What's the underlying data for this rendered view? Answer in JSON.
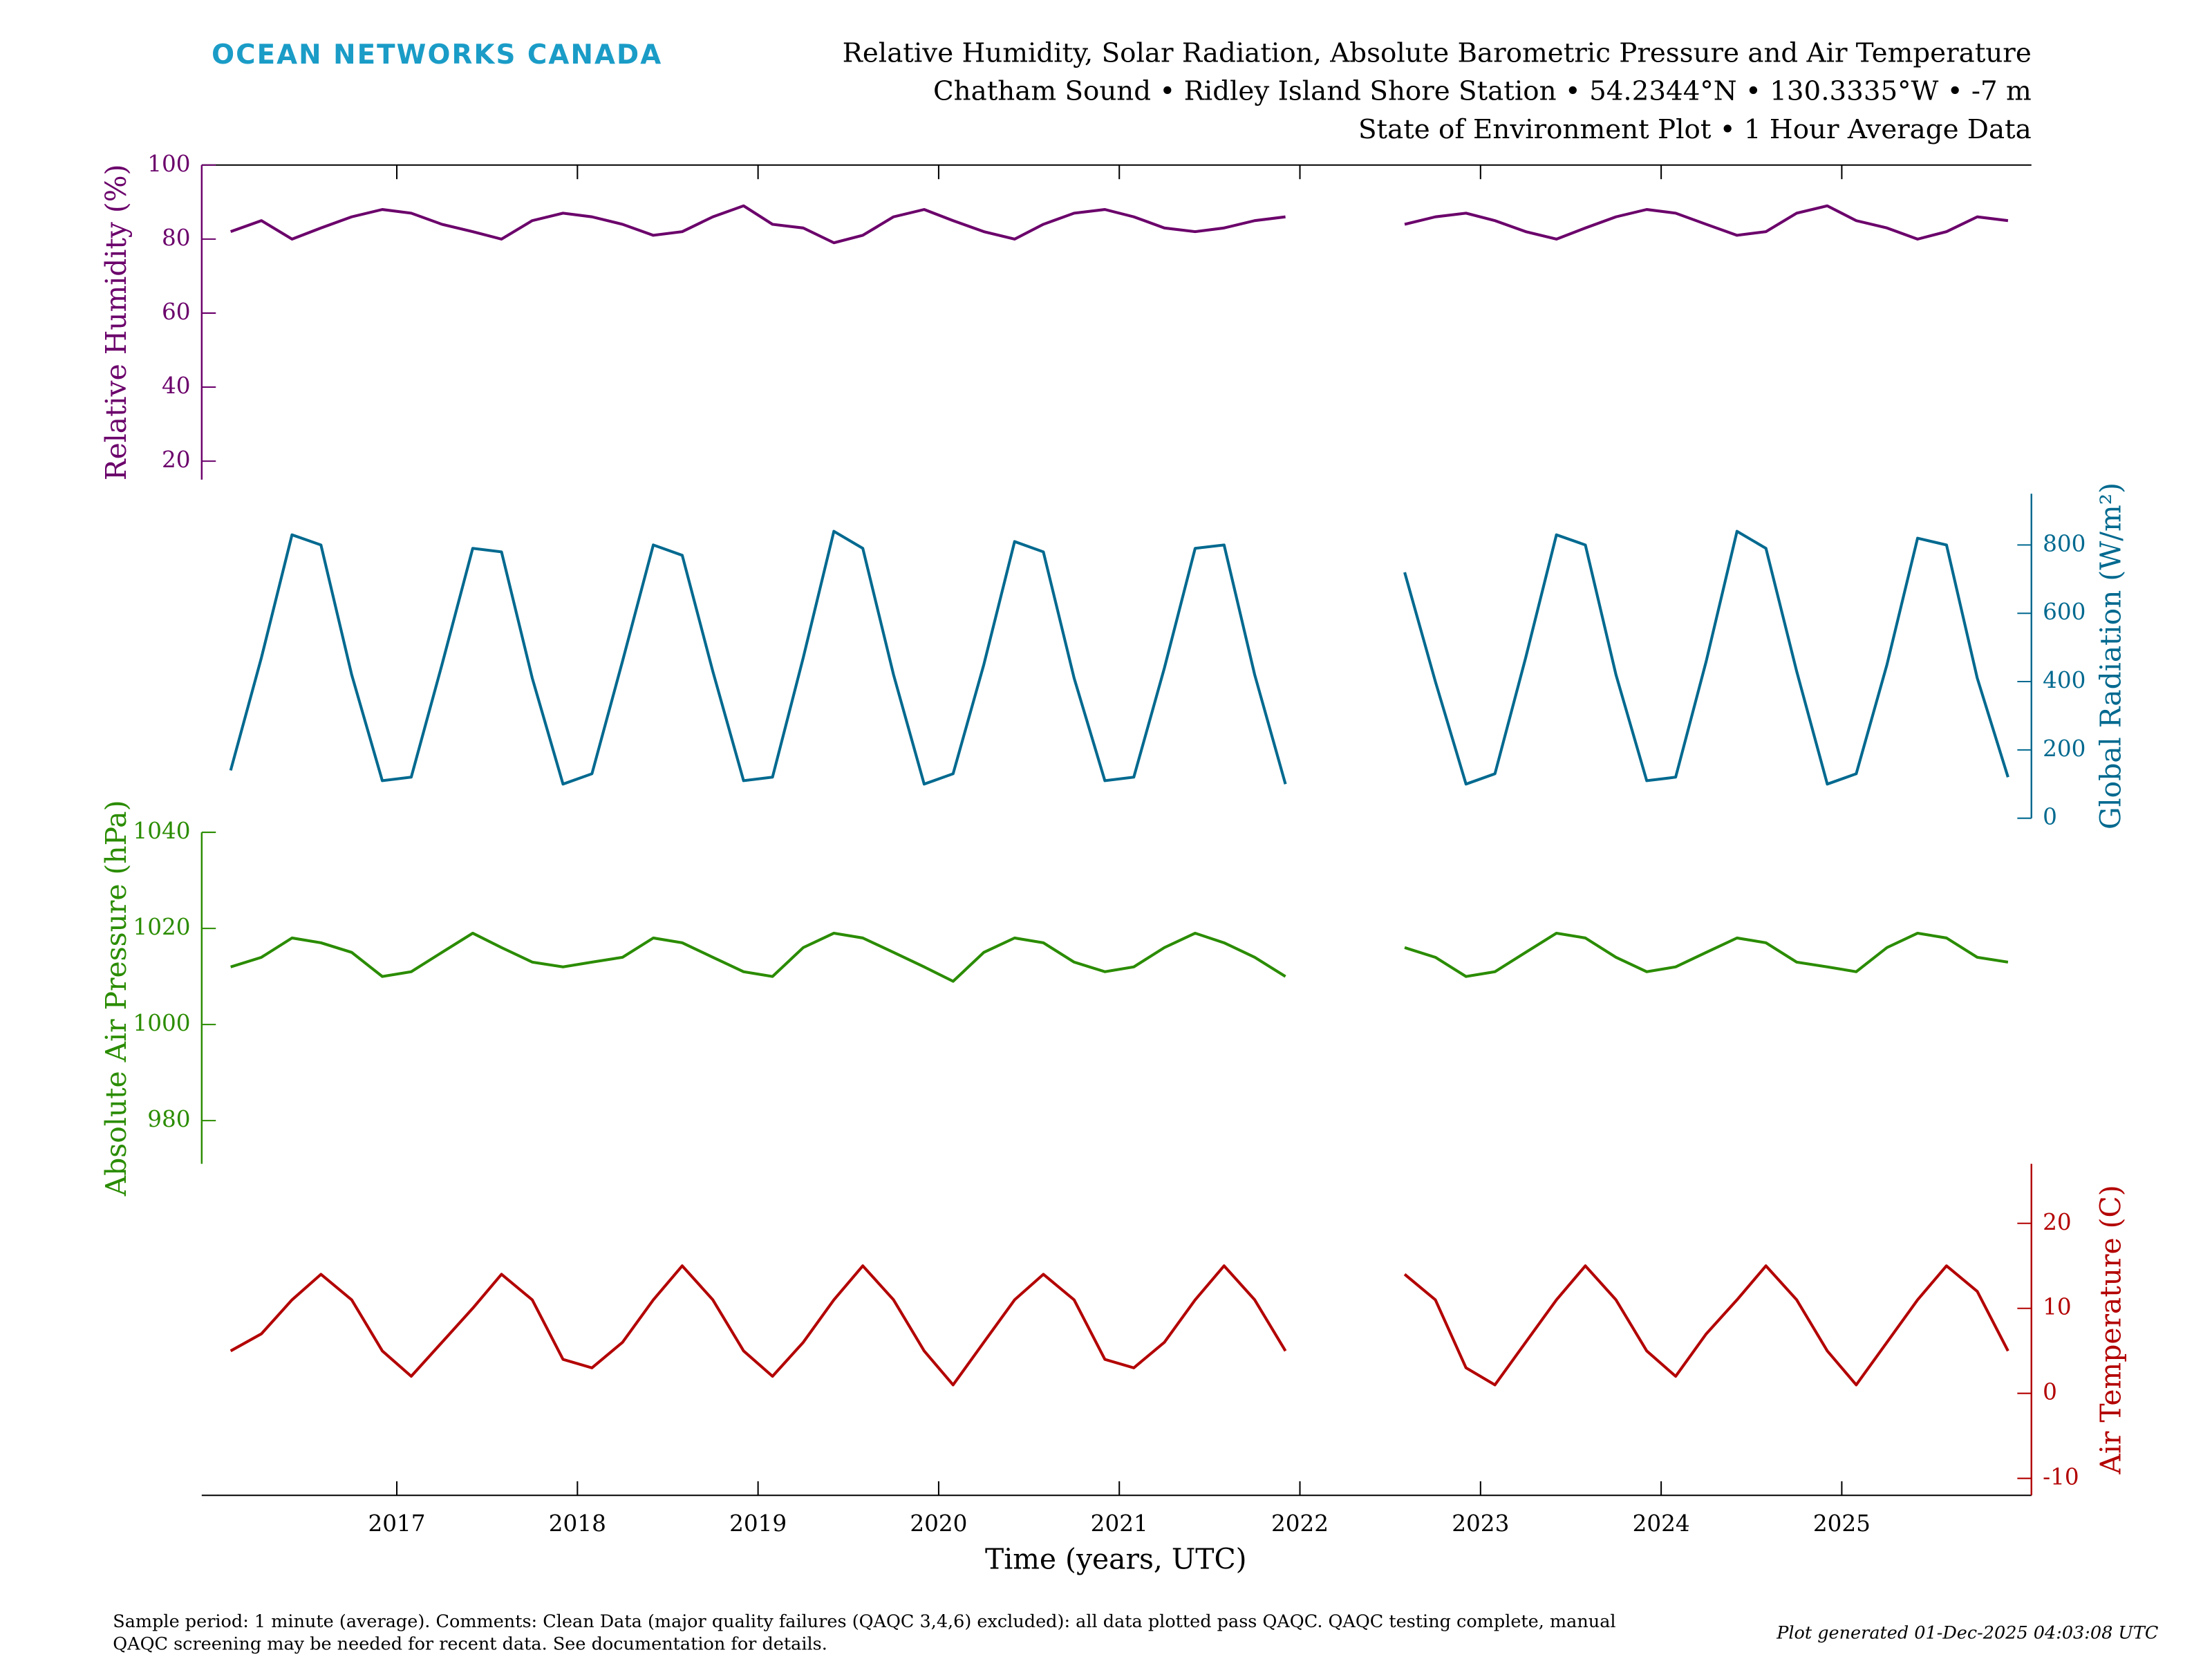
{
  "header": {
    "logo": "OCEAN NETWORKS CANADA",
    "title_lines": [
      "Relative Humidity, Solar Radiation, Absolute Barometric Pressure and Air Temperature",
      "Chatham Sound • Ridley Island Shore Station • 54.2344°N • 130.3335°W • -7 m",
      "State of Environment Plot • 1 Hour Average Data"
    ]
  },
  "chart_data": {
    "type": "line",
    "xlabel": "Time (years, UTC)",
    "xlim": [
      2015.92,
      2026.05
    ],
    "xticks": [
      2017,
      2018,
      2019,
      2020,
      2021,
      2022,
      2023,
      2024,
      2025
    ],
    "x": [
      2016.08,
      2016.25,
      2016.42,
      2016.58,
      2016.75,
      2016.92,
      2017.08,
      2017.25,
      2017.42,
      2017.58,
      2017.75,
      2017.92,
      2018.08,
      2018.25,
      2018.42,
      2018.58,
      2018.75,
      2018.92,
      2019.08,
      2019.25,
      2019.42,
      2019.58,
      2019.75,
      2019.92,
      2020.08,
      2020.25,
      2020.42,
      2020.58,
      2020.75,
      2020.92,
      2021.08,
      2021.25,
      2021.42,
      2021.58,
      2021.75,
      2021.92,
      2022.25,
      2022.58,
      2022.75,
      2022.92,
      2023.08,
      2023.25,
      2023.42,
      2023.58,
      2023.75,
      2023.92,
      2024.08,
      2024.25,
      2024.42,
      2024.58,
      2024.75,
      2024.92,
      2025.08,
      2025.25,
      2025.42,
      2025.58,
      2025.75,
      2025.92
    ],
    "panels": [
      {
        "ylabel": "Relative Humidity (%)",
        "color": "#6b006b",
        "ylim": [
          15,
          100
        ],
        "yticks": [
          20,
          40,
          60,
          80,
          100
        ],
        "values": [
          82,
          85,
          80,
          83,
          86,
          88,
          87,
          84,
          82,
          80,
          85,
          87,
          86,
          84,
          81,
          82,
          86,
          89,
          84,
          83,
          79,
          81,
          86,
          88,
          85,
          82,
          80,
          84,
          87,
          88,
          86,
          83,
          82,
          83,
          85,
          86,
          null,
          84,
          86,
          87,
          85,
          82,
          80,
          83,
          86,
          88,
          87,
          84,
          81,
          82,
          87,
          89,
          85,
          83,
          80,
          82,
          86,
          85
        ]
      },
      {
        "ylabel": "Global Radiation (W/m²)",
        "color": "#00698f",
        "ylim": [
          0,
          950
        ],
        "yticks": [
          0,
          200,
          400,
          600,
          800
        ],
        "values": [
          140,
          470,
          830,
          800,
          420,
          110,
          120,
          450,
          790,
          780,
          410,
          100,
          130,
          460,
          800,
          770,
          430,
          110,
          120,
          470,
          840,
          790,
          420,
          100,
          130,
          450,
          810,
          780,
          410,
          110,
          120,
          440,
          790,
          800,
          420,
          100,
          null,
          720,
          400,
          100,
          130,
          470,
          830,
          800,
          420,
          110,
          120,
          460,
          840,
          790,
          430,
          100,
          130,
          450,
          820,
          800,
          410,
          120
        ]
      },
      {
        "ylabel": "Absolute Air Pressure (hPa)",
        "color": "#2a8c00",
        "ylim": [
          971,
          1040
        ],
        "yticks": [
          980,
          1000,
          1020,
          1040
        ],
        "values": [
          1012,
          1014,
          1018,
          1017,
          1015,
          1010,
          1011,
          1015,
          1019,
          1016,
          1013,
          1012,
          1013,
          1014,
          1018,
          1017,
          1014,
          1011,
          1010,
          1016,
          1019,
          1018,
          1015,
          1012,
          1009,
          1015,
          1018,
          1017,
          1013,
          1011,
          1012,
          1016,
          1019,
          1017,
          1014,
          1010,
          null,
          1016,
          1014,
          1010,
          1011,
          1015,
          1019,
          1018,
          1014,
          1011,
          1012,
          1015,
          1018,
          1017,
          1013,
          1012,
          1011,
          1016,
          1019,
          1018,
          1014,
          1013
        ]
      },
      {
        "ylabel": "Air Temperature (C)",
        "color": "#b30000",
        "ylim": [
          -12,
          27
        ],
        "yticks": [
          -10,
          0,
          10,
          20
        ],
        "values": [
          5,
          7,
          11,
          14,
          11,
          5,
          2,
          6,
          10,
          14,
          11,
          4,
          3,
          6,
          11,
          15,
          11,
          5,
          2,
          6,
          11,
          15,
          11,
          5,
          1,
          6,
          11,
          14,
          11,
          4,
          3,
          6,
          11,
          15,
          11,
          5,
          null,
          14,
          11,
          3,
          1,
          6,
          11,
          15,
          11,
          5,
          2,
          7,
          11,
          15,
          11,
          5,
          1,
          6,
          11,
          15,
          12,
          5
        ]
      }
    ]
  },
  "footer": {
    "note_lines": [
      "Sample period: 1 minute (average). Comments: Clean Data (major quality failures (QAQC 3,4,6) excluded): all data plotted pass QAQC. QAQC testing complete, manual",
      "QAQC screening may be needed for recent data. See documentation for details."
    ],
    "generated": "Plot generated 01-Dec-2025 04:03:08 UTC"
  }
}
